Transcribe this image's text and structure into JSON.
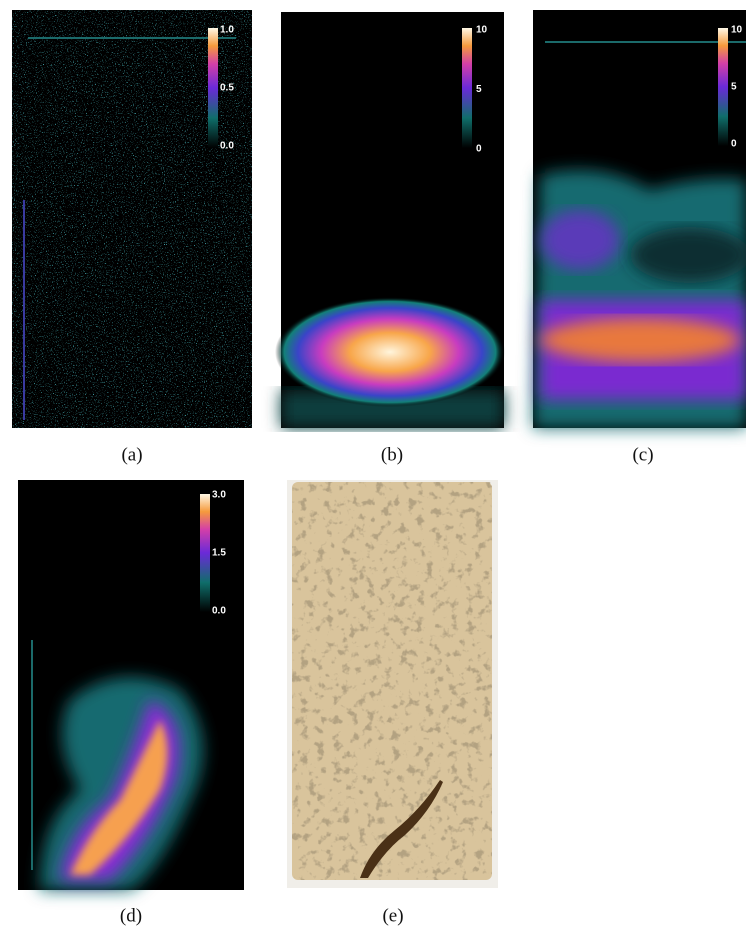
{
  "panels": [
    {
      "label": "(a)",
      "colorbar": [
        "1.0",
        "0.5",
        "0.0"
      ]
    },
    {
      "label": "(b)",
      "colorbar": [
        "10",
        "5",
        "0"
      ]
    },
    {
      "label": "(c)",
      "colorbar": [
        "10",
        "5",
        "0"
      ]
    },
    {
      "label": "(d)",
      "colorbar": [
        "3.0",
        "1.5",
        "0.0"
      ]
    },
    {
      "label": "(e)"
    }
  ]
}
